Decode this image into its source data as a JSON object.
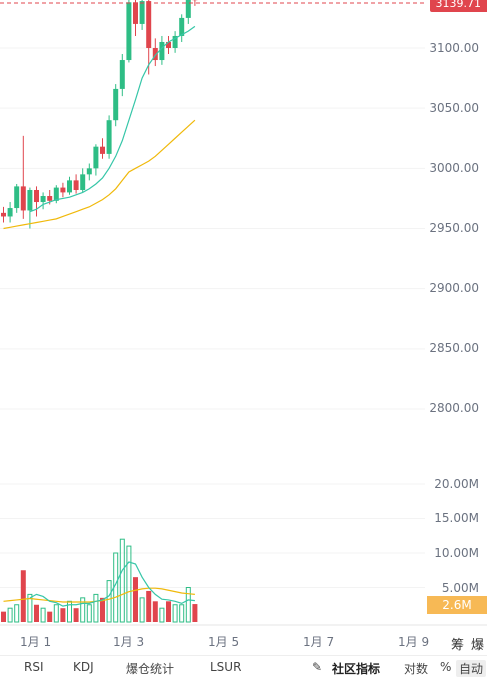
{
  "chart_data": {
    "type": "candlestick",
    "price_axis": {
      "ticks": [
        "3100.00",
        "3050.00",
        "3000.00",
        "2950.00",
        "2900.00",
        "2850.00",
        "2800.00"
      ],
      "values": [
        3100,
        3050,
        3000,
        2950,
        2900,
        2850,
        2800
      ]
    },
    "volume_axis": {
      "ticks": [
        "20.00M",
        "15.00M",
        "10.00M",
        "5.00M"
      ],
      "values": [
        20,
        15,
        10,
        5
      ]
    },
    "x_labels": [
      "1月 1",
      "1月 3",
      "1月 5",
      "1月 7",
      "1月 9"
    ],
    "current_price": "3139.71",
    "current_volume": "2.6M",
    "candles": [
      {
        "o": 2963,
        "c": 2960,
        "h": 2968,
        "l": 2955
      },
      {
        "o": 2960,
        "c": 2967,
        "h": 2972,
        "l": 2955
      },
      {
        "o": 2967,
        "c": 2985,
        "h": 2987,
        "l": 2963
      },
      {
        "o": 2985,
        "c": 2965,
        "h": 3027,
        "l": 2958
      },
      {
        "o": 2965,
        "c": 2982,
        "h": 2984,
        "l": 2950
      },
      {
        "o": 2982,
        "c": 2972,
        "h": 2985,
        "l": 2960
      },
      {
        "o": 2972,
        "c": 2977,
        "h": 2980,
        "l": 2966
      },
      {
        "o": 2977,
        "c": 2973,
        "h": 2982,
        "l": 2970
      },
      {
        "o": 2973,
        "c": 2984,
        "h": 2986,
        "l": 2971
      },
      {
        "o": 2984,
        "c": 2980,
        "h": 2988,
        "l": 2976
      },
      {
        "o": 2980,
        "c": 2990,
        "h": 2993,
        "l": 2978
      },
      {
        "o": 2990,
        "c": 2982,
        "h": 2995,
        "l": 2979
      },
      {
        "o": 2982,
        "c": 2995,
        "h": 3000,
        "l": 2980
      },
      {
        "o": 2995,
        "c": 3000,
        "h": 3004,
        "l": 2990
      },
      {
        "o": 3000,
        "c": 3018,
        "h": 3020,
        "l": 2994
      },
      {
        "o": 3018,
        "c": 3012,
        "h": 3025,
        "l": 3008
      },
      {
        "o": 3012,
        "c": 3040,
        "h": 3044,
        "l": 3008
      },
      {
        "o": 3040,
        "c": 3066,
        "h": 3070,
        "l": 3035
      },
      {
        "o": 3066,
        "c": 3090,
        "h": 3095,
        "l": 3060
      },
      {
        "o": 3090,
        "c": 3138,
        "h": 3150,
        "l": 3088
      },
      {
        "o": 3138,
        "c": 3120,
        "h": 3150,
        "l": 3110
      },
      {
        "o": 3120,
        "c": 3139,
        "h": 3142,
        "l": 3115
      },
      {
        "o": 3139,
        "c": 3100,
        "h": 3140,
        "l": 3078
      },
      {
        "o": 3100,
        "c": 3090,
        "h": 3108,
        "l": 3085
      },
      {
        "o": 3090,
        "c": 3105,
        "h": 3110,
        "l": 3086
      },
      {
        "o": 3105,
        "c": 3100,
        "h": 3110,
        "l": 3095
      },
      {
        "o": 3100,
        "c": 3110,
        "h": 3114,
        "l": 3096
      },
      {
        "o": 3110,
        "c": 3125,
        "h": 3128,
        "l": 3105
      },
      {
        "o": 3125,
        "c": 3145,
        "h": 3150,
        "l": 3120
      },
      {
        "o": 3145,
        "c": 3139.71,
        "h": 3148,
        "l": 3135
      }
    ],
    "volumes": [
      1.5,
      2.0,
      2.5,
      7.5,
      4.0,
      2.5,
      2.0,
      1.5,
      2.5,
      2.0,
      3.0,
      2.0,
      3.5,
      2.5,
      4.0,
      3.5,
      6.0,
      10.0,
      12.0,
      11.0,
      6.5,
      3.5,
      4.5,
      3.0,
      2.0,
      3.0,
      2.5,
      2.5,
      5.0,
      2.6
    ],
    "ma_fast": [
      null,
      null,
      null,
      null,
      2964,
      2966,
      2970,
      2972,
      2974,
      2975,
      2976,
      2978,
      2980,
      2983,
      2987,
      2992,
      3000,
      3010,
      3023,
      3040,
      3057,
      3075,
      3086,
      3094,
      3100,
      3105,
      3108,
      3111,
      3114,
      3118
    ],
    "ma_slow": [
      2950,
      2951,
      2952,
      2953,
      2954,
      2955,
      2956,
      2957,
      2958,
      2960,
      2962,
      2964,
      2966,
      2968,
      2971,
      2974,
      2978,
      2983,
      2990,
      2997,
      3000,
      3003,
      3006,
      3010,
      3015,
      3020,
      3025,
      3030,
      3035,
      3040
    ],
    "vol_ma_fast": [
      null,
      null,
      null,
      null,
      3.5,
      4.0,
      3.7,
      3.0,
      2.8,
      2.3,
      2.5,
      2.5,
      2.7,
      2.7,
      3.0,
      3.2,
      3.8,
      5.5,
      7.5,
      8.7,
      8.4,
      6.5,
      5.0,
      4.0,
      3.3,
      3.2,
      3.0,
      2.7,
      3.2,
      3.1
    ],
    "vol_ma_slow": [
      3.0,
      3.1,
      3.2,
      3.3,
      3.4,
      3.3,
      3.2,
      3.1,
      3.0,
      2.9,
      2.9,
      2.9,
      2.9,
      2.9,
      3.0,
      3.1,
      3.3,
      3.6,
      4.0,
      4.4,
      4.6,
      4.8,
      4.9,
      4.9,
      4.8,
      4.6,
      4.4,
      4.2,
      4.1,
      4.0
    ]
  },
  "side_buttons": {
    "chips": "筹",
    "burst": "爆"
  },
  "bottom_tabs": {
    "rsi": "RSI",
    "kdj": "KDJ",
    "liquidations": "爆仓统计",
    "lsur": "LSUR",
    "community": "社区指标",
    "log": "对数",
    "percent": "%",
    "auto": "自动"
  },
  "colors": {
    "up": "#2ebd85",
    "down": "#e0454d",
    "ma_fast": "#36c6a8",
    "ma_slow": "#f0b90b",
    "vol_badge": "#f7b955"
  }
}
